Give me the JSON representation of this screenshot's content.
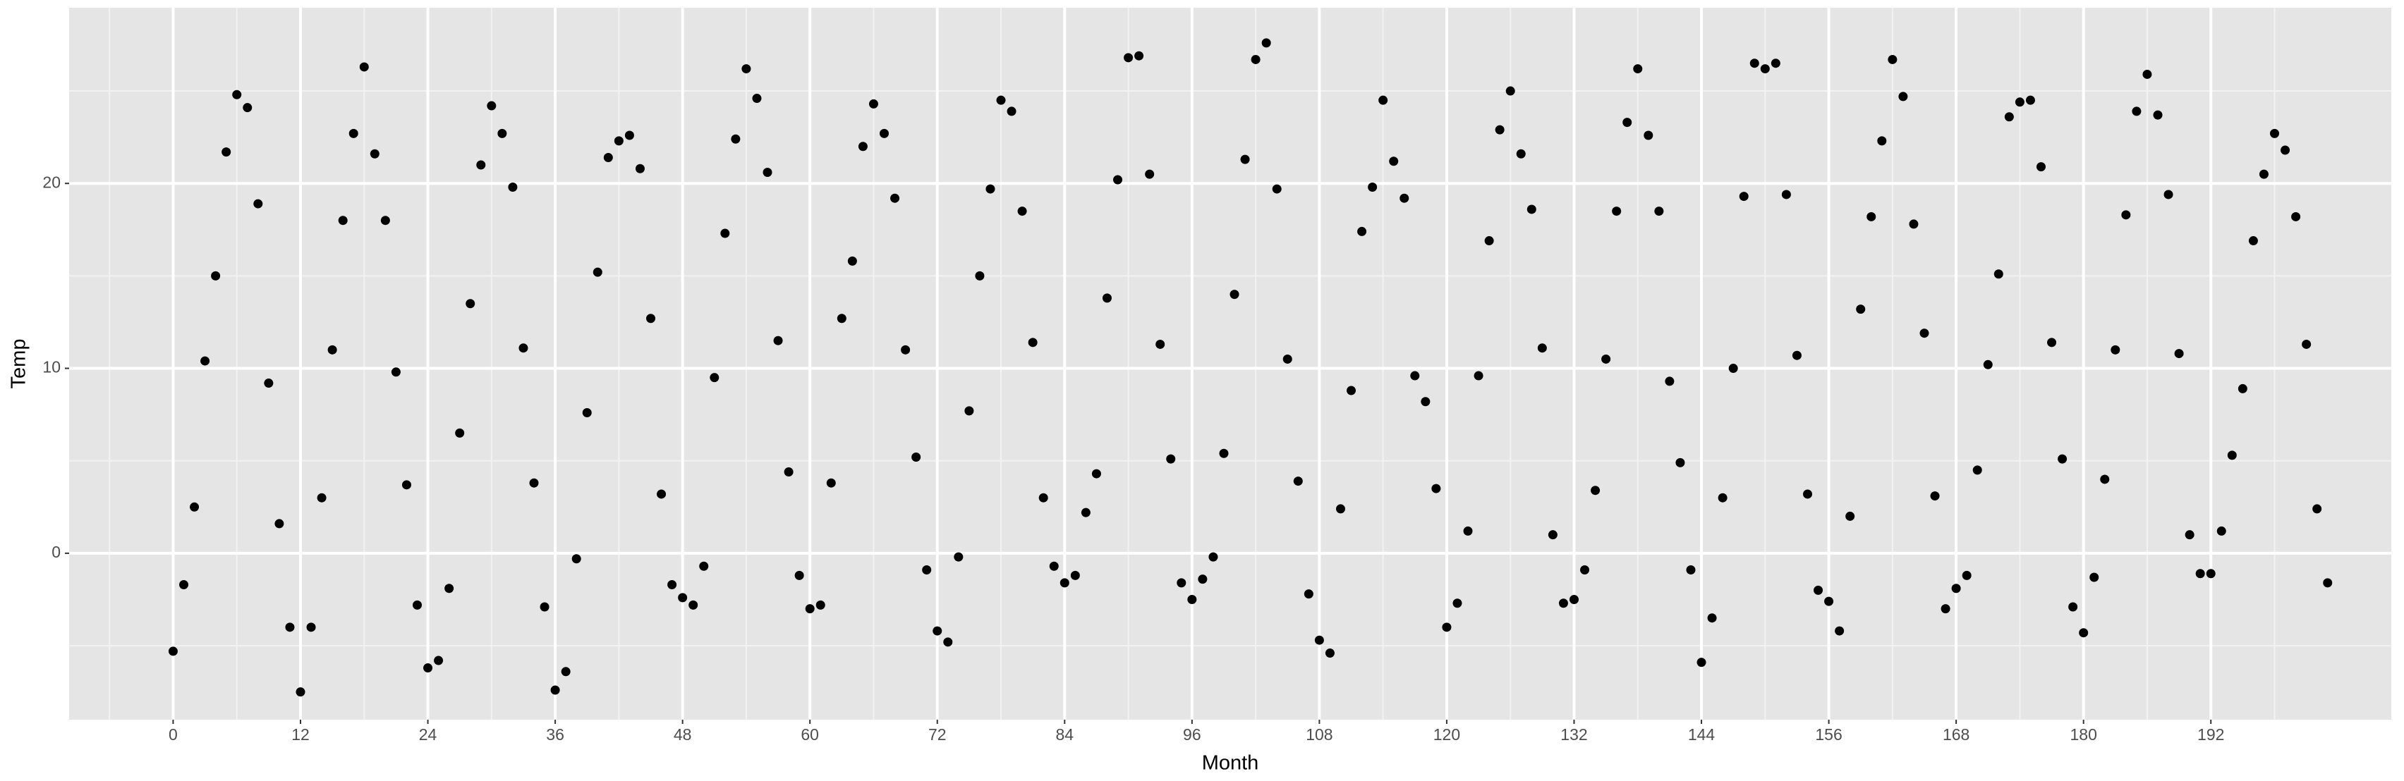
{
  "chart_data": {
    "type": "scatter",
    "x_label": "Month",
    "y_label": "Temp",
    "x": [
      0,
      1,
      2,
      3,
      4,
      5,
      6,
      7,
      8,
      9,
      10,
      11,
      12,
      13,
      14,
      15,
      16,
      17,
      18,
      19,
      20,
      21,
      22,
      23,
      24,
      25,
      26,
      27,
      28,
      29,
      30,
      31,
      32,
      33,
      34,
      35,
      36,
      37,
      38,
      39,
      40,
      41,
      42,
      43,
      44,
      45,
      46,
      47,
      48,
      49,
      50,
      51,
      52,
      53,
      54,
      55,
      56,
      57,
      58,
      59,
      60,
      61,
      62,
      63,
      64,
      65,
      66,
      67,
      68,
      69,
      70,
      71,
      72,
      73,
      74,
      75,
      76,
      77,
      78,
      79,
      80,
      81,
      82,
      83,
      84,
      85,
      86,
      87,
      88,
      89,
      90,
      91,
      92,
      93,
      94,
      95,
      96,
      97,
      98,
      99,
      100,
      101,
      102,
      103,
      104,
      105,
      106,
      107,
      108,
      109,
      110,
      111,
      112,
      113,
      114,
      115,
      116,
      117,
      118,
      119,
      120,
      121,
      122,
      123,
      124,
      125,
      126,
      127,
      128,
      129,
      130,
      131,
      132,
      133,
      134,
      135,
      136,
      137,
      138,
      139,
      140,
      141,
      142,
      143,
      144,
      145,
      146,
      147,
      148,
      149,
      150,
      151,
      152,
      153,
      154,
      155,
      156,
      157,
      158,
      159,
      160,
      161,
      162,
      163,
      164,
      165,
      166,
      167,
      168,
      169,
      170,
      171,
      172,
      173,
      174,
      175,
      176,
      177,
      178,
      179,
      180,
      181,
      182,
      183,
      184,
      185,
      186,
      187,
      188,
      189,
      190,
      191,
      192,
      193,
      194,
      195,
      196,
      197,
      198,
      199,
      200,
      201,
      202,
      203
    ],
    "values": [
      -5.3,
      -1.7,
      2.5,
      10.4,
      15.0,
      21.7,
      24.8,
      24.1,
      18.9,
      9.2,
      1.6,
      -4.0,
      -7.5,
      -4.0,
      3.0,
      11.0,
      18.0,
      22.7,
      26.3,
      21.6,
      18.0,
      9.8,
      3.7,
      -2.8,
      -6.2,
      -5.8,
      -1.9,
      6.5,
      13.5,
      21.0,
      24.2,
      22.7,
      19.8,
      11.1,
      3.8,
      -2.9,
      -7.4,
      -6.4,
      -0.3,
      7.6,
      15.2,
      21.4,
      22.3,
      22.6,
      20.8,
      12.7,
      3.2,
      -1.7,
      -2.4,
      -2.8,
      -0.7,
      9.5,
      17.3,
      22.4,
      26.2,
      24.6,
      20.6,
      11.5,
      4.4,
      -1.2,
      -3.0,
      -2.8,
      3.8,
      12.7,
      15.8,
      22.0,
      24.3,
      22.7,
      19.2,
      11.0,
      5.2,
      -0.9,
      -4.2,
      -4.8,
      -0.2,
      7.7,
      15.0,
      19.7,
      24.5,
      23.9,
      18.5,
      11.4,
      3.0,
      -0.7,
      -1.6,
      -1.2,
      2.2,
      4.3,
      13.8,
      20.2,
      26.8,
      26.9,
      20.5,
      11.3,
      5.1,
      -1.6,
      -2.5,
      -1.4,
      -0.2,
      5.4,
      14.0,
      21.3,
      26.7,
      27.6,
      19.7,
      10.5,
      3.9,
      -2.2,
      -4.7,
      -5.4,
      2.4,
      8.8,
      17.4,
      19.8,
      24.5,
      21.2,
      19.2,
      9.6,
      8.2,
      3.5,
      -4.0,
      -2.7,
      1.2,
      9.6,
      16.9,
      22.9,
      25.0,
      21.6,
      18.6,
      11.1,
      1.0,
      -2.7,
      -2.5,
      -0.9,
      3.4,
      10.5,
      18.5,
      23.3,
      26.2,
      22.6,
      18.5,
      9.3,
      4.9,
      -0.9,
      -5.9,
      -3.5,
      3.0,
      10.0,
      19.3,
      26.5,
      26.2,
      26.5,
      19.4,
      10.7,
      3.2,
      -2.0,
      -2.6,
      -4.2,
      2.0,
      13.2,
      18.2,
      22.3,
      26.7,
      24.7,
      17.8,
      11.9,
      3.1,
      -3.0,
      -1.9,
      -1.2,
      4.5,
      10.2,
      15.1,
      23.6,
      24.4,
      24.5,
      20.9,
      11.4,
      5.1,
      -2.9,
      -4.3,
      -1.3,
      4.0,
      11.0,
      18.3,
      23.9,
      25.9,
      23.7,
      19.4,
      10.8,
      1.0,
      -1.1,
      -1.1,
      1.2,
      5.3,
      8.9,
      16.9,
      20.5,
      22.7,
      21.8,
      18.2,
      11.3,
      2.4,
      -1.6
    ],
    "color": "#000000",
    "xlim": [
      -9.8,
      209
    ],
    "ylim": [
      -9.0,
      29.5
    ],
    "xticks": [
      0,
      12,
      24,
      36,
      48,
      60,
      72,
      84,
      96,
      108,
      120,
      132,
      144,
      156,
      168,
      180,
      192
    ],
    "yticks": [
      0,
      10,
      20
    ],
    "grid": true
  }
}
